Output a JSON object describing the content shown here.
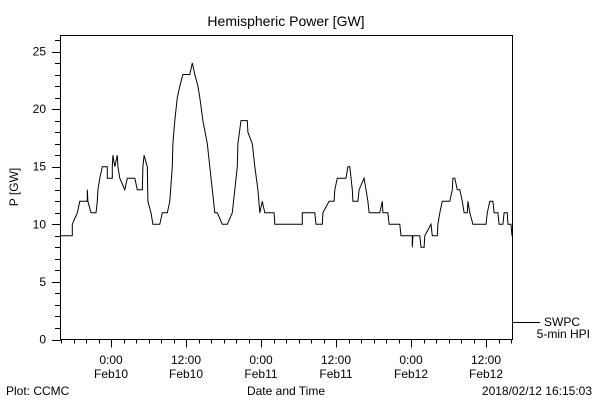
{
  "chart_data": {
    "type": "line",
    "title": "Hemispheric Power [GW]",
    "xlabel": "Date and Time",
    "ylabel": "P [GW]",
    "ylim": [
      0,
      26
    ],
    "yticks": [
      0,
      5,
      10,
      15,
      20,
      25
    ],
    "x_units": "hours since Feb10 00:00",
    "xlim": [
      -8.16,
      64.16
    ],
    "xticks": [
      {
        "value": 0,
        "line1": "0:00",
        "line2": "Feb10"
      },
      {
        "value": 12,
        "line1": "12:00",
        "line2": "Feb10"
      },
      {
        "value": 24,
        "line1": "0:00",
        "line2": "Feb11"
      },
      {
        "value": 36,
        "line1": "12:00",
        "line2": "Feb11"
      },
      {
        "value": 48,
        "line1": "0:00",
        "line2": "Feb12"
      },
      {
        "value": 60,
        "line1": "12:00",
        "line2": "Feb12"
      }
    ],
    "grid": false,
    "legend": {
      "position": "bottom-right",
      "line1": "SWPC",
      "line2": "5-min HPI"
    },
    "series": [
      {
        "name": "SWPC 5-min HPI",
        "color": "#000000",
        "x": [
          -8.2,
          -6.2,
          -6.2,
          -5.4,
          -5.0,
          -3.8,
          -3.8,
          -3.7,
          -3.2,
          -2.4,
          -2.2,
          -2.1,
          -1.8,
          -1.4,
          -0.6,
          -0.6,
          0.2,
          0.2,
          0.3,
          0.6,
          1.0,
          1.1,
          1.4,
          2.2,
          2.6,
          3.8,
          4.2,
          5.0,
          5.1,
          5.3,
          5.8,
          5.9,
          6.4,
          6.7,
          7.8,
          8.2,
          9.0,
          9.4,
          9.8,
          9.9,
          10.2,
          10.6,
          11.0,
          11.5,
          12.6,
          13.0,
          13.4,
          13.9,
          14.2,
          14.7,
          15.4,
          15.8,
          16.2,
          16.6,
          17.0,
          17.8,
          18.6,
          19.4,
          19.8,
          20.2,
          20.3,
          20.8,
          21.8,
          21.9,
          22.6,
          23.0,
          23.5,
          23.8,
          24.2,
          24.6,
          26.1,
          26.2,
          30.6,
          30.6,
          32.6,
          32.8,
          33.8,
          33.9,
          34.9,
          35.7,
          35.8,
          36.2,
          37.6,
          37.9,
          38.2,
          38.6,
          38.7,
          39.5,
          39.7,
          40.5,
          40.8,
          41.1,
          41.3,
          43.0,
          43.4,
          43.5,
          44.3,
          44.5,
          46.2,
          46.4,
          48.2,
          48.2,
          48.3,
          49.4,
          49.6,
          50.1,
          50.2,
          51.2,
          51.4,
          52.2,
          52.3,
          52.6,
          53.0,
          54.2,
          54.6,
          54.7,
          55.0,
          55.4,
          55.8,
          56.2,
          56.5,
          57.0,
          57.1,
          57.4,
          57.9,
          60.0,
          60.2,
          60.6,
          61.1,
          61.3,
          61.9,
          62.1,
          62.7,
          62.9,
          63.4,
          63.5,
          64.0,
          64.16
        ],
        "values": [
          9,
          9,
          10,
          11,
          12,
          12,
          13,
          12,
          11,
          11,
          12,
          13,
          14,
          15,
          15,
          14,
          14,
          15,
          16,
          15,
          16,
          15,
          14,
          13,
          14,
          14,
          13,
          13,
          15,
          16,
          15,
          12,
          11,
          10,
          10,
          11,
          11,
          12,
          15,
          17,
          19,
          21,
          22,
          23,
          23,
          24,
          23,
          22,
          21,
          19,
          17,
          15,
          13,
          11,
          11,
          10,
          10,
          11,
          13,
          15,
          17,
          19,
          19,
          18,
          17,
          15,
          13,
          11,
          12,
          11,
          11,
          10,
          10,
          11,
          11,
          10,
          10,
          11,
          12,
          12,
          13,
          14,
          14,
          15,
          15,
          13,
          12,
          12,
          13,
          14,
          13,
          12,
          11,
          11,
          12,
          11,
          11,
          10,
          10,
          9,
          9,
          8,
          9,
          9,
          8,
          8,
          9,
          10,
          9,
          9,
          10,
          11,
          12,
          12,
          13,
          14,
          14,
          13,
          13,
          12,
          11,
          11,
          12,
          11,
          10,
          10,
          11,
          12,
          12,
          11,
          11,
          10,
          10,
          11,
          11,
          10,
          10,
          9
        ]
      }
    ]
  },
  "footer": {
    "left": "Plot: CCMC",
    "right": "2018/02/12 16:15:03"
  }
}
